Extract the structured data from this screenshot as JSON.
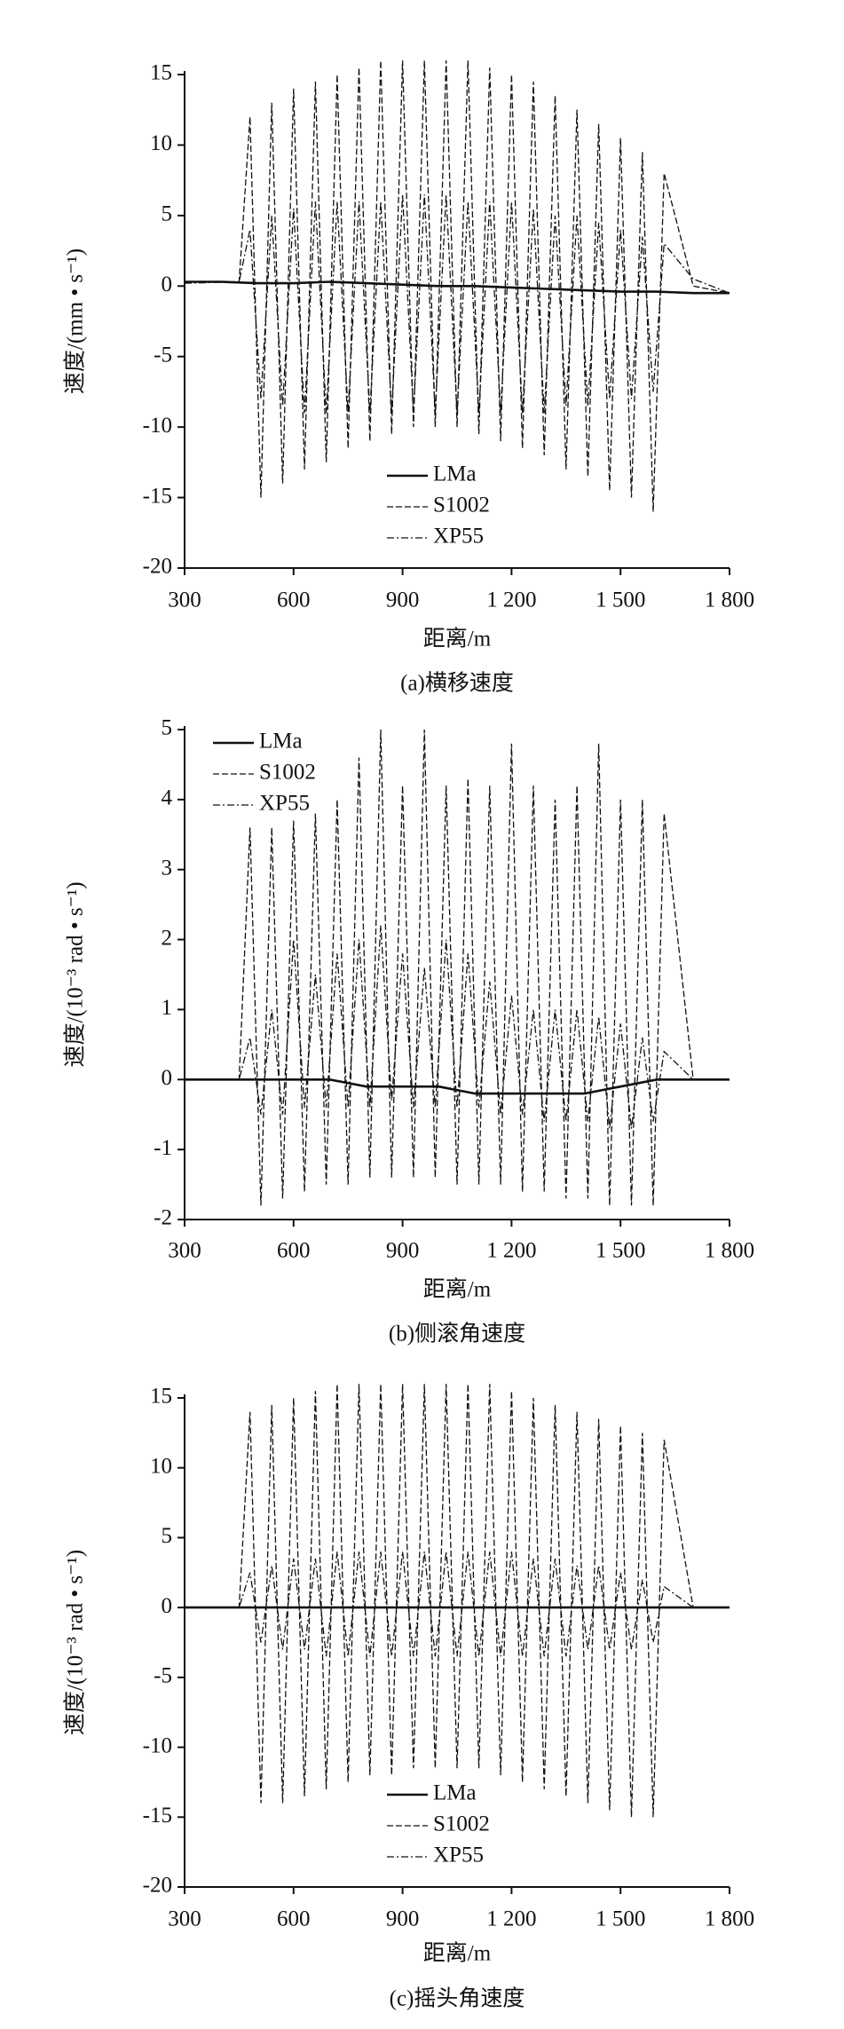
{
  "chart_data": [
    {
      "type": "line",
      "caption": "(a)横移速度",
      "xlabel": "距离/m",
      "ylabel": "速度/(mm • s⁻¹)",
      "xlim": [
        300,
        1800
      ],
      "ylim": [
        -20,
        15
      ],
      "xticks": [
        300,
        600,
        900,
        {
          "value": 1200,
          "label": "1 200"
        },
        {
          "value": 1500,
          "label": "1 500"
        },
        {
          "value": 1800,
          "label": "1 800"
        }
      ],
      "yticks": [
        -20,
        -15,
        -10,
        -5,
        0,
        5,
        10,
        15
      ],
      "legend": "lower center",
      "series": [
        {
          "name": "LMa",
          "color": "#111111",
          "dash": "solid",
          "x": [
            300,
            400,
            500,
            600,
            700,
            800,
            900,
            1000,
            1100,
            1200,
            1300,
            1400,
            1500,
            1600,
            1700,
            1800
          ],
          "values": [
            0.3,
            0.3,
            0.2,
            0.2,
            0.3,
            0.2,
            0.1,
            0,
            0,
            -0.1,
            -0.2,
            -0.3,
            -0.4,
            -0.4,
            -0.5,
            -0.5
          ]
        },
        {
          "name": "S1002",
          "color": "#111111",
          "dash": "dashed",
          "x": [
            300,
            450,
            480,
            510,
            540,
            570,
            600,
            630,
            660,
            690,
            720,
            750,
            780,
            810,
            840,
            870,
            900,
            930,
            960,
            990,
            1020,
            1050,
            1080,
            1110,
            1140,
            1170,
            1200,
            1230,
            1260,
            1290,
            1320,
            1350,
            1380,
            1410,
            1440,
            1470,
            1500,
            1530,
            1560,
            1590,
            1620,
            1700,
            1800
          ],
          "values": [
            0.3,
            0.3,
            12,
            -15,
            13,
            -14,
            14,
            -13,
            14.5,
            -12.5,
            15,
            -11.5,
            15.5,
            -11,
            16,
            -10.5,
            16,
            -10,
            16,
            -10,
            16,
            -10,
            16,
            -10.5,
            15.5,
            -11,
            15,
            -11.5,
            14.5,
            -12,
            13.5,
            -13,
            12.5,
            -13.5,
            11.5,
            -14.5,
            10.5,
            -15,
            9.5,
            -16,
            8,
            0,
            -0.5
          ]
        },
        {
          "name": "XP55",
          "color": "#111111",
          "dash": "dashdot",
          "x": [
            300,
            450,
            480,
            510,
            540,
            570,
            600,
            630,
            660,
            690,
            720,
            750,
            780,
            810,
            840,
            870,
            900,
            930,
            960,
            990,
            1020,
            1050,
            1080,
            1110,
            1140,
            1170,
            1200,
            1230,
            1260,
            1290,
            1320,
            1350,
            1380,
            1410,
            1440,
            1470,
            1500,
            1530,
            1560,
            1590,
            1620,
            1700,
            1800
          ],
          "values": [
            0.2,
            0.3,
            4,
            -8,
            5,
            -8.5,
            5.5,
            -9,
            6,
            -9,
            6,
            -9,
            6,
            -9,
            6,
            -9,
            6.5,
            -9,
            6.5,
            -9,
            6.5,
            -9,
            6,
            -9,
            6,
            -9,
            6,
            -9,
            5.5,
            -9,
            5,
            -8.5,
            5,
            -8.5,
            4.5,
            -8,
            4,
            -8,
            3.5,
            -7.5,
            3,
            0.5,
            -0.5
          ]
        }
      ]
    },
    {
      "type": "line",
      "caption": "(b)侧滚角速度",
      "xlabel": "距离/m",
      "ylabel": "速度/(10⁻³ rad • s⁻¹)",
      "xlim": [
        300,
        1800
      ],
      "ylim": [
        -2,
        5
      ],
      "xticks": [
        300,
        600,
        900,
        {
          "value": 1200,
          "label": "1 200"
        },
        {
          "value": 1500,
          "label": "1 500"
        },
        {
          "value": 1800,
          "label": "1 800"
        }
      ],
      "yticks": [
        -2,
        -1,
        0,
        1,
        2,
        3,
        4,
        5
      ],
      "legend": "upper left",
      "series": [
        {
          "name": "LMa",
          "color": "#111111",
          "dash": "solid",
          "x": [
            300,
            400,
            500,
            600,
            700,
            800,
            900,
            1000,
            1100,
            1200,
            1300,
            1400,
            1500,
            1600,
            1700,
            1800
          ],
          "values": [
            0,
            0,
            0,
            0,
            0,
            -0.1,
            -0.1,
            -0.1,
            -0.2,
            -0.2,
            -0.2,
            -0.2,
            -0.1,
            0,
            0,
            0
          ]
        },
        {
          "name": "S1002",
          "color": "#111111",
          "dash": "dashed",
          "x": [
            300,
            450,
            480,
            510,
            540,
            570,
            600,
            630,
            660,
            690,
            720,
            750,
            780,
            810,
            840,
            870,
            900,
            930,
            960,
            990,
            1020,
            1050,
            1080,
            1110,
            1140,
            1170,
            1200,
            1230,
            1260,
            1290,
            1320,
            1350,
            1380,
            1410,
            1440,
            1470,
            1500,
            1530,
            1560,
            1590,
            1620,
            1700,
            1800
          ],
          "values": [
            0,
            0,
            3.6,
            -1.8,
            3.6,
            -1.7,
            3.7,
            -1.6,
            3.8,
            -1.5,
            4,
            -1.5,
            4.6,
            -1.4,
            5,
            -1.4,
            4.2,
            -1.4,
            5,
            -1.4,
            4.2,
            -1.5,
            4.3,
            -1.5,
            4.2,
            -1.5,
            4.8,
            -1.6,
            4.2,
            -1.6,
            4,
            -1.7,
            4.2,
            -1.7,
            4.8,
            -1.8,
            4,
            -1.8,
            4,
            -1.8,
            3.8,
            0,
            0
          ]
        },
        {
          "name": "XP55",
          "color": "#111111",
          "dash": "dashdot",
          "x": [
            300,
            450,
            480,
            510,
            540,
            570,
            600,
            630,
            660,
            690,
            720,
            750,
            780,
            810,
            840,
            870,
            900,
            930,
            960,
            990,
            1020,
            1050,
            1080,
            1110,
            1140,
            1170,
            1200,
            1230,
            1260,
            1290,
            1320,
            1350,
            1380,
            1410,
            1440,
            1470,
            1500,
            1530,
            1560,
            1590,
            1620,
            1700,
            1800
          ],
          "values": [
            0,
            0,
            0.6,
            -0.5,
            1,
            -0.5,
            2,
            -0.4,
            1.5,
            -0.4,
            1.8,
            -0.4,
            2,
            -0.4,
            2.2,
            -0.3,
            1.8,
            -0.4,
            1.6,
            -0.4,
            2,
            -0.4,
            1.8,
            -0.4,
            1.4,
            -0.5,
            1.2,
            -0.5,
            1,
            -0.6,
            1,
            -0.6,
            1,
            -0.6,
            0.9,
            -0.7,
            0.8,
            -0.7,
            0.6,
            -0.6,
            0.4,
            0,
            0
          ]
        }
      ]
    },
    {
      "type": "line",
      "caption": "(c)摇头角速度",
      "xlabel": "距离/m",
      "ylabel": "速度/(10⁻³ rad • s⁻¹)",
      "xlim": [
        300,
        1800
      ],
      "ylim": [
        -20,
        15
      ],
      "xticks": [
        300,
        600,
        900,
        {
          "value": 1200,
          "label": "1 200"
        },
        {
          "value": 1500,
          "label": "1 500"
        },
        {
          "value": 1800,
          "label": "1 800"
        }
      ],
      "yticks": [
        -20,
        -15,
        -10,
        -5,
        0,
        5,
        10,
        15
      ],
      "legend": "lower center",
      "series": [
        {
          "name": "LMa",
          "color": "#111111",
          "dash": "solid",
          "x": [
            300,
            400,
            500,
            600,
            700,
            800,
            900,
            1000,
            1100,
            1200,
            1300,
            1400,
            1500,
            1600,
            1700,
            1800
          ],
          "values": [
            0,
            0,
            0,
            0,
            0,
            0,
            0,
            0,
            0,
            0,
            0,
            0,
            0,
            0,
            0,
            0
          ]
        },
        {
          "name": "S1002",
          "color": "#111111",
          "dash": "dashed",
          "x": [
            300,
            450,
            480,
            510,
            540,
            570,
            600,
            630,
            660,
            690,
            720,
            750,
            780,
            810,
            840,
            870,
            900,
            930,
            960,
            990,
            1020,
            1050,
            1080,
            1110,
            1140,
            1170,
            1200,
            1230,
            1260,
            1290,
            1320,
            1350,
            1380,
            1410,
            1440,
            1470,
            1500,
            1530,
            1560,
            1590,
            1620,
            1700,
            1800
          ],
          "values": [
            0,
            0,
            14,
            -14,
            14.5,
            -14,
            15,
            -13.5,
            15.5,
            -13,
            16,
            -12.5,
            16,
            -12,
            16,
            -12,
            16,
            -11.5,
            16,
            -11.5,
            16,
            -11.5,
            16,
            -11.5,
            16,
            -12,
            15.5,
            -12.5,
            15,
            -13,
            14.5,
            -13.5,
            14,
            -14,
            13.5,
            -14.5,
            13,
            -15,
            12.5,
            -15,
            12,
            0,
            0
          ]
        },
        {
          "name": "XP55",
          "color": "#111111",
          "dash": "dashdot",
          "x": [
            300,
            450,
            480,
            510,
            540,
            570,
            600,
            630,
            660,
            690,
            720,
            750,
            780,
            810,
            840,
            870,
            900,
            930,
            960,
            990,
            1020,
            1050,
            1080,
            1110,
            1140,
            1170,
            1200,
            1230,
            1260,
            1290,
            1320,
            1350,
            1380,
            1410,
            1440,
            1470,
            1500,
            1530,
            1560,
            1590,
            1620,
            1700,
            1800
          ],
          "values": [
            0,
            0,
            2.5,
            -2.5,
            3,
            -3,
            3.5,
            -3,
            3.5,
            -3.5,
            4,
            -3.5,
            4,
            -3.5,
            4,
            -3.5,
            4,
            -3.5,
            4,
            -3.5,
            4,
            -3.5,
            4,
            -3.5,
            4,
            -3.5,
            4,
            -3.5,
            3.5,
            -3.5,
            3.5,
            -3.5,
            3,
            -3,
            3,
            -3,
            2.5,
            -3,
            2,
            -2.5,
            1.5,
            0,
            0
          ]
        }
      ]
    }
  ]
}
